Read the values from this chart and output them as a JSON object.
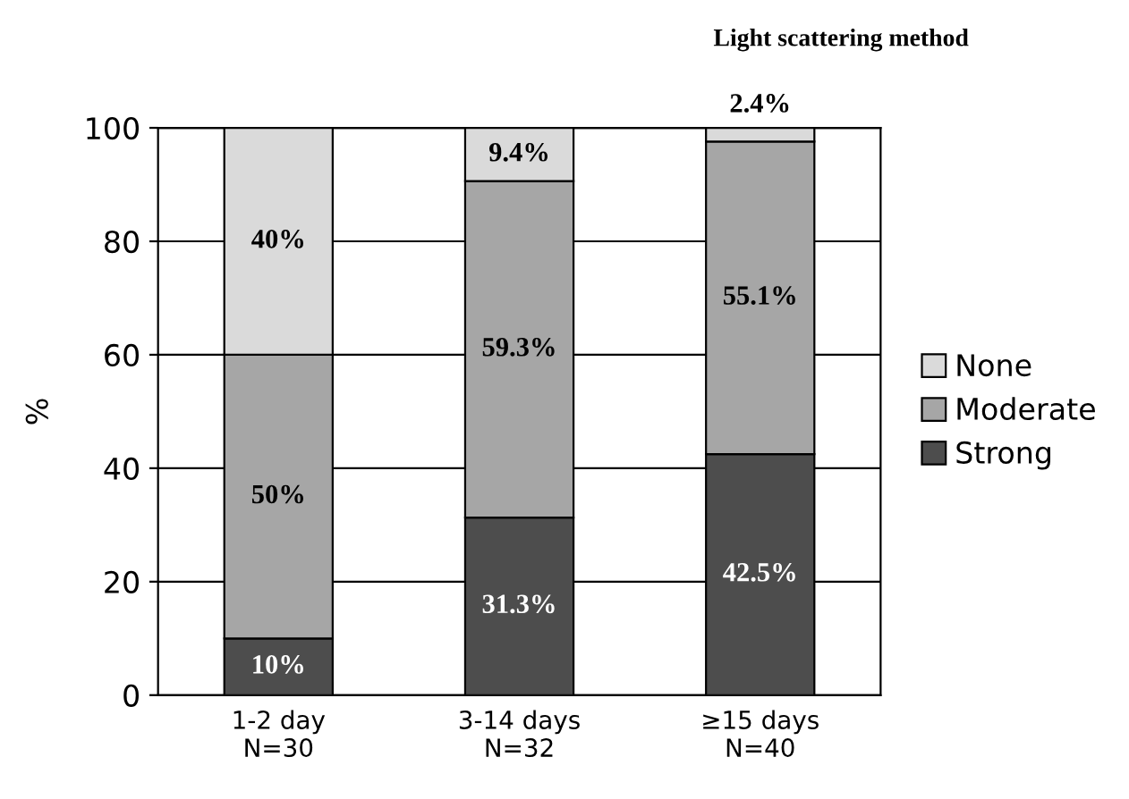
{
  "chart_data": {
    "type": "bar",
    "stacked": true,
    "title": "Light scattering method",
    "categories": [
      "1-2 day\nN=30",
      "3-14 days\nN=32",
      "≥15 days\nN=40"
    ],
    "series": [
      {
        "name": "Strong",
        "color": "#4d4d4d",
        "values": [
          10,
          31.3,
          42.5
        ],
        "value_labels": [
          "10%",
          "31.3%",
          "42.5%"
        ]
      },
      {
        "name": "Moderate",
        "color": "#a6a6a6",
        "values": [
          50,
          59.3,
          55.1
        ],
        "value_labels": [
          "50%",
          "59.3%",
          "55.1%"
        ]
      },
      {
        "name": "None",
        "color": "#dadada",
        "values": [
          40,
          9.4,
          2.4
        ],
        "value_labels": [
          "40%",
          "9.4%",
          "2.4%"
        ]
      }
    ],
    "ylabel": "%",
    "ylim": [
      0,
      100
    ],
    "yticks": [
      0,
      20,
      40,
      60,
      80,
      100
    ],
    "grid": "y",
    "legend": "right"
  }
}
